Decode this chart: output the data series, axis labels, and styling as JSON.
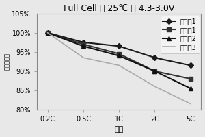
{
  "title": "Full Cell ， 25℃ ， 4.3-3.0V",
  "xlabel": "倍率",
  "ylabel": "容量保持率",
  "x_labels": [
    "0.2C",
    "0.5C",
    "1C",
    "2C",
    "5C"
  ],
  "x_values": [
    0,
    1,
    2,
    3,
    4
  ],
  "series": [
    {
      "name": "实施例1",
      "values": [
        100,
        97.5,
        96.5,
        93.5,
        91.5
      ],
      "color": "#1a1a1a",
      "marker": "D",
      "markersize": 4,
      "linewidth": 1.5,
      "linestyle": "-"
    },
    {
      "name": "对比例1",
      "values": [
        100,
        97.0,
        94.5,
        90.0,
        88.0
      ],
      "color": "#333333",
      "marker": "s",
      "markersize": 4,
      "linewidth": 1.5,
      "linestyle": "-"
    },
    {
      "name": "对比例2",
      "values": [
        100,
        96.5,
        94.0,
        90.0,
        85.5
      ],
      "color": "#111111",
      "marker": "^",
      "markersize": 4,
      "linewidth": 1.5,
      "linestyle": "-"
    },
    {
      "name": "对比例3",
      "values": [
        100,
        93.5,
        91.5,
        86.0,
        81.5
      ],
      "color": "#aaaaaa",
      "marker": null,
      "markersize": 0,
      "linewidth": 1.2,
      "linestyle": "-"
    }
  ],
  "ylim": [
    80,
    105
  ],
  "yticks": [
    80,
    85,
    90,
    95,
    100,
    105
  ],
  "ytick_labels": [
    "80%",
    "85%",
    "90%",
    "95%",
    "100%",
    "105%"
  ],
  "background_color": "#e8e8e8",
  "plot_bg_color": "#e8e8e8",
  "title_fontsize": 9,
  "label_fontsize": 8,
  "tick_fontsize": 7,
  "legend_fontsize": 7
}
